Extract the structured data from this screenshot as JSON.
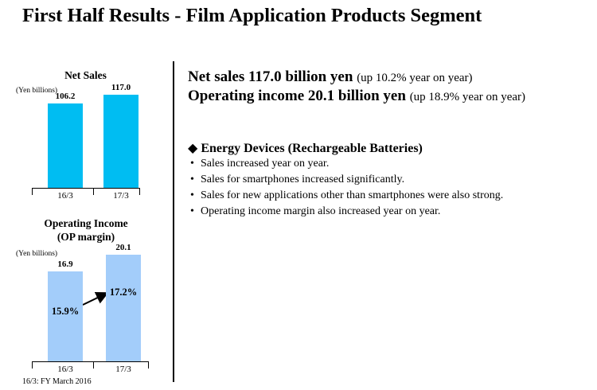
{
  "title": "First Half Results - Film Application Products Segment",
  "footnote": "16/3: FY March 2016",
  "colors": {
    "net_sales_bar": "#00bdf2",
    "op_income_bar": "#a3cdfa"
  },
  "summary": {
    "net_sales_main": "Net sales 117.0 billion yen",
    "net_sales_note": "(up 10.2% year on year)",
    "op_income_main": "Operating income 20.1 billion yen",
    "op_income_note": "(up 18.9% year on year)"
  },
  "section": {
    "icon": "diamond-bullet-icon",
    "heading": "Energy Devices (Rechargeable Batteries)",
    "bullets": [
      "Sales increased year on year.",
      "Sales for smartphones increased significantly.",
      "Sales for new applications other than smartphones were also strong.",
      "Operating income margin also increased year on year."
    ]
  },
  "chart_data": [
    {
      "type": "bar",
      "title": "Net Sales",
      "unit": "(Yen billions)",
      "categories": [
        "16/3",
        "17/3"
      ],
      "values": [
        106.2,
        117.0
      ],
      "value_labels": [
        "106.2",
        "117.0"
      ],
      "ylim": [
        0,
        125
      ],
      "grid": false,
      "legend": "none"
    },
    {
      "type": "bar",
      "title_line1": "Operating Income",
      "title_line2": "(OP margin)",
      "unit": "(Yen billions)",
      "categories": [
        "16/3",
        "17/3"
      ],
      "values": [
        16.9,
        20.1
      ],
      "value_labels": [
        "16.9",
        "20.1"
      ],
      "op_margin_labels": [
        "15.9%",
        "17.2%"
      ],
      "op_margin": [
        15.9,
        17.2
      ],
      "ylim": [
        0,
        21.3
      ],
      "grid": false,
      "legend": "none"
    }
  ]
}
